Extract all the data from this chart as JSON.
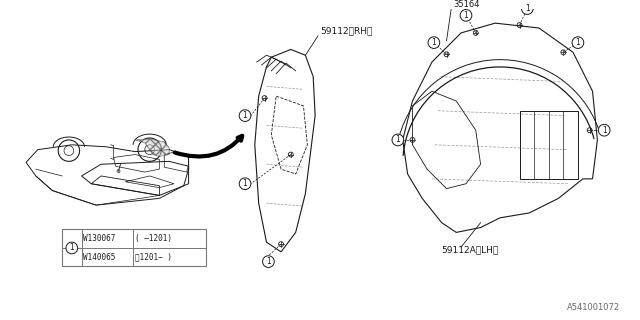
{
  "bg_color": "#ffffff",
  "line_color": "#1a1a1a",
  "light_line_color": "#999999",
  "dash_color": "#555555",
  "part_label_rh": "59112〈RH〉",
  "part_label_lh": "59112A〈LH〉",
  "part_num": "35164",
  "diagram_number": "A541001072",
  "border_color": "#777777",
  "legend_part1": "W130067",
  "legend_date1": "( ‒1201)",
  "legend_part2": "W140065",
  "legend_date2": "㈁1201− )"
}
